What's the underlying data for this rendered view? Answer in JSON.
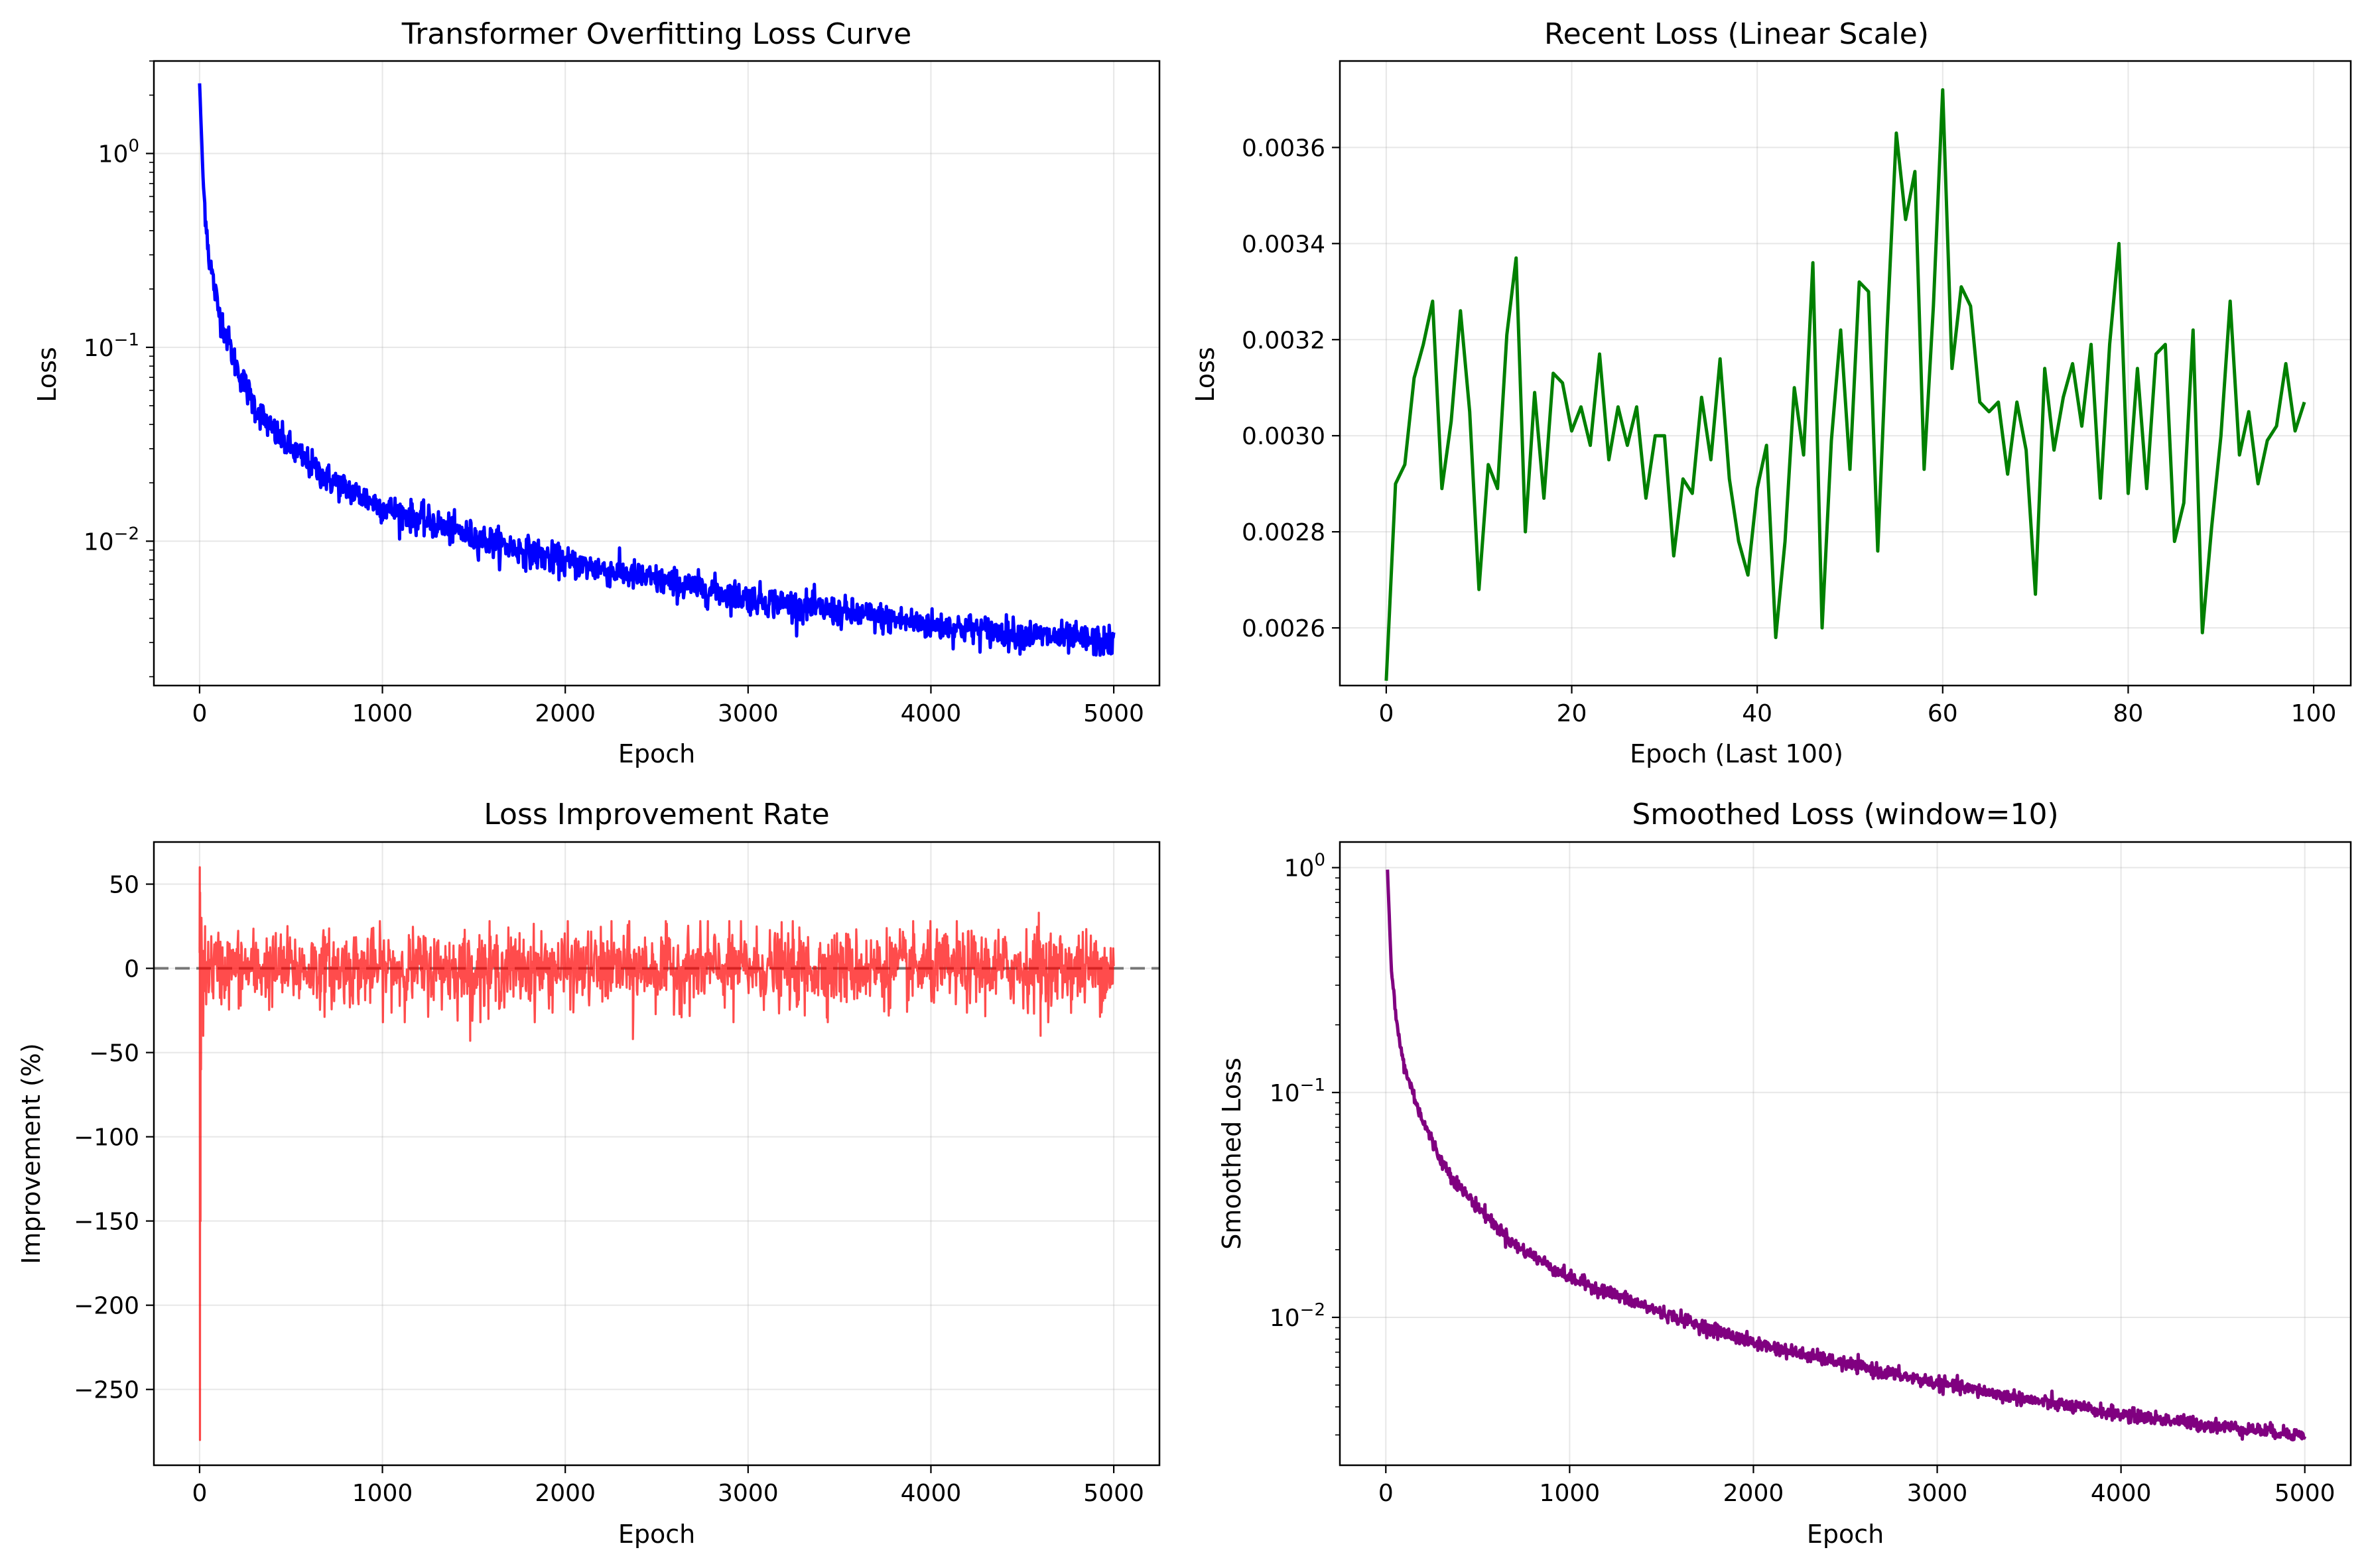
{
  "chart_data": [
    {
      "id": "p1",
      "type": "line",
      "title": "Transformer Overfitting Loss Curve",
      "xlabel": "Epoch",
      "ylabel": "Loss",
      "yscale": "log",
      "xlim": [
        -250,
        5250
      ],
      "ylim": [
        0.0018,
        3.0
      ],
      "xticks": [
        0,
        1000,
        2000,
        3000,
        4000,
        5000
      ],
      "yticks": [
        {
          "value": 1.0,
          "base": "10",
          "exp": "0"
        },
        {
          "value": 0.1,
          "base": "10",
          "exp": "−1"
        },
        {
          "value": 0.01,
          "base": "10",
          "exp": "−2"
        }
      ],
      "grid": true,
      "color": "#0000ff",
      "series": [
        {
          "kind": "decay",
          "x0": 0,
          "x1": 5000,
          "start": 2.3,
          "points": [
            [
              0,
              2.3
            ],
            [
              20,
              0.7
            ],
            [
              50,
              0.3
            ],
            [
              100,
              0.16
            ],
            [
              200,
              0.08
            ],
            [
              300,
              0.05
            ],
            [
              400,
              0.037
            ],
            [
              500,
              0.03
            ],
            [
              700,
              0.021
            ],
            [
              1000,
              0.015
            ],
            [
              1500,
              0.0105
            ],
            [
              2000,
              0.0078
            ],
            [
              2500,
              0.0063
            ],
            [
              3000,
              0.0051
            ],
            [
              3500,
              0.0043
            ],
            [
              4000,
              0.0037
            ],
            [
              4500,
              0.0033
            ],
            [
              5000,
              0.003
            ]
          ],
          "noise": 0.09
        }
      ]
    },
    {
      "id": "p2",
      "type": "line",
      "title": "Recent Loss (Linear Scale)",
      "xlabel": "Epoch (Last 100)",
      "ylabel": "Loss",
      "xlim": [
        -5,
        104
      ],
      "ylim": [
        0.00248,
        0.00378
      ],
      "xticks": [
        0,
        20,
        40,
        60,
        80,
        100
      ],
      "yticks": [
        0.0026,
        0.0028,
        0.003,
        0.0032,
        0.0034,
        0.0036
      ],
      "grid": true,
      "color": "#008000",
      "series": [
        {
          "name": "",
          "values": [
            0.00249,
            0.0029,
            0.00294,
            0.00312,
            0.00319,
            0.00328,
            0.00289,
            0.00303,
            0.00326,
            0.00305,
            0.00268,
            0.00294,
            0.00289,
            0.00321,
            0.00337,
            0.0028,
            0.00309,
            0.00287,
            0.00313,
            0.00311,
            0.00301,
            0.00306,
            0.00298,
            0.00317,
            0.00295,
            0.00306,
            0.00298,
            0.00306,
            0.00287,
            0.003,
            0.003,
            0.00275,
            0.00291,
            0.00288,
            0.00308,
            0.00295,
            0.00316,
            0.00291,
            0.00278,
            0.00271,
            0.00289,
            0.00298,
            0.00258,
            0.00278,
            0.0031,
            0.00296,
            0.00336,
            0.0026,
            0.00299,
            0.00322,
            0.00293,
            0.00332,
            0.0033,
            0.00276,
            0.00322,
            0.00363,
            0.00345,
            0.00355,
            0.00293,
            0.00327,
            0.00372,
            0.00314,
            0.00331,
            0.00327,
            0.00307,
            0.00305,
            0.00307,
            0.00292,
            0.00307,
            0.00297,
            0.00267,
            0.00314,
            0.00297,
            0.00308,
            0.00315,
            0.00302,
            0.00319,
            0.00287,
            0.00319,
            0.0034,
            0.00288,
            0.00314,
            0.00289,
            0.00317,
            0.00319,
            0.00278,
            0.00286,
            0.00322,
            0.00259,
            0.00281,
            0.003,
            0.00328,
            0.00296,
            0.00305,
            0.0029,
            0.00299,
            0.00302,
            0.00315,
            0.00301,
            0.00307
          ]
        }
      ]
    },
    {
      "id": "p3",
      "type": "line",
      "title": "Loss Improvement Rate",
      "xlabel": "Epoch",
      "ylabel": "Improvement (%)",
      "xlim": [
        -250,
        5250
      ],
      "ylim": [
        -295,
        75
      ],
      "xticks": [
        0,
        1000,
        2000,
        3000,
        4000,
        5000
      ],
      "yticks": [
        50,
        0,
        -50,
        -100,
        -150,
        -200,
        -250
      ],
      "grid": true,
      "color": "#ff0000",
      "alpha": 0.7,
      "zero_line": {
        "y": 0,
        "style": "dashed",
        "color": "#000000"
      },
      "series": [
        {
          "kind": "noise",
          "x0": 0,
          "x1": 5000,
          "amplitude": 11,
          "spikes": [
            [
              1,
              60
            ],
            [
              2,
              -280
            ],
            [
              3,
              45
            ],
            [
              5,
              -150
            ],
            [
              8,
              -60
            ],
            [
              10,
              30
            ],
            [
              20,
              -40
            ],
            [
              30,
              25
            ],
            [
              1480,
              -43
            ],
            [
              2370,
              -42
            ],
            [
              4600,
              -40
            ],
            [
              4590,
              33
            ],
            [
              2780,
              28
            ],
            [
              2920,
              -32
            ],
            [
              1580,
              -30
            ],
            [
              3310,
              -28
            ]
          ]
        }
      ]
    },
    {
      "id": "p4",
      "type": "line",
      "title": "Smoothed Loss (window=10)",
      "xlabel": "Epoch",
      "ylabel": "Smoothed Loss",
      "yscale": "log",
      "xlim": [
        -250,
        5250
      ],
      "ylim": [
        0.0022,
        1.3
      ],
      "xticks": [
        0,
        1000,
        2000,
        3000,
        4000,
        5000
      ],
      "yticks": [
        {
          "value": 1.0,
          "base": "10",
          "exp": "0"
        },
        {
          "value": 0.1,
          "base": "10",
          "exp": "−1"
        },
        {
          "value": 0.01,
          "base": "10",
          "exp": "−2"
        }
      ],
      "grid": true,
      "color": "#800080",
      "series": [
        {
          "kind": "decay",
          "x0": 9,
          "x1": 5000,
          "start": 0.98,
          "points": [
            [
              9,
              0.98
            ],
            [
              30,
              0.35
            ],
            [
              60,
              0.2
            ],
            [
              100,
              0.13
            ],
            [
              200,
              0.075
            ],
            [
              300,
              0.05
            ],
            [
              400,
              0.038
            ],
            [
              500,
              0.031
            ],
            [
              700,
              0.021
            ],
            [
              1000,
              0.015
            ],
            [
              1500,
              0.0105
            ],
            [
              2000,
              0.0077
            ],
            [
              2500,
              0.0062
            ],
            [
              3000,
              0.0051
            ],
            [
              3500,
              0.0043
            ],
            [
              4000,
              0.0037
            ],
            [
              4500,
              0.0033
            ],
            [
              5000,
              0.003
            ]
          ],
          "noise": 0.035
        }
      ]
    }
  ]
}
